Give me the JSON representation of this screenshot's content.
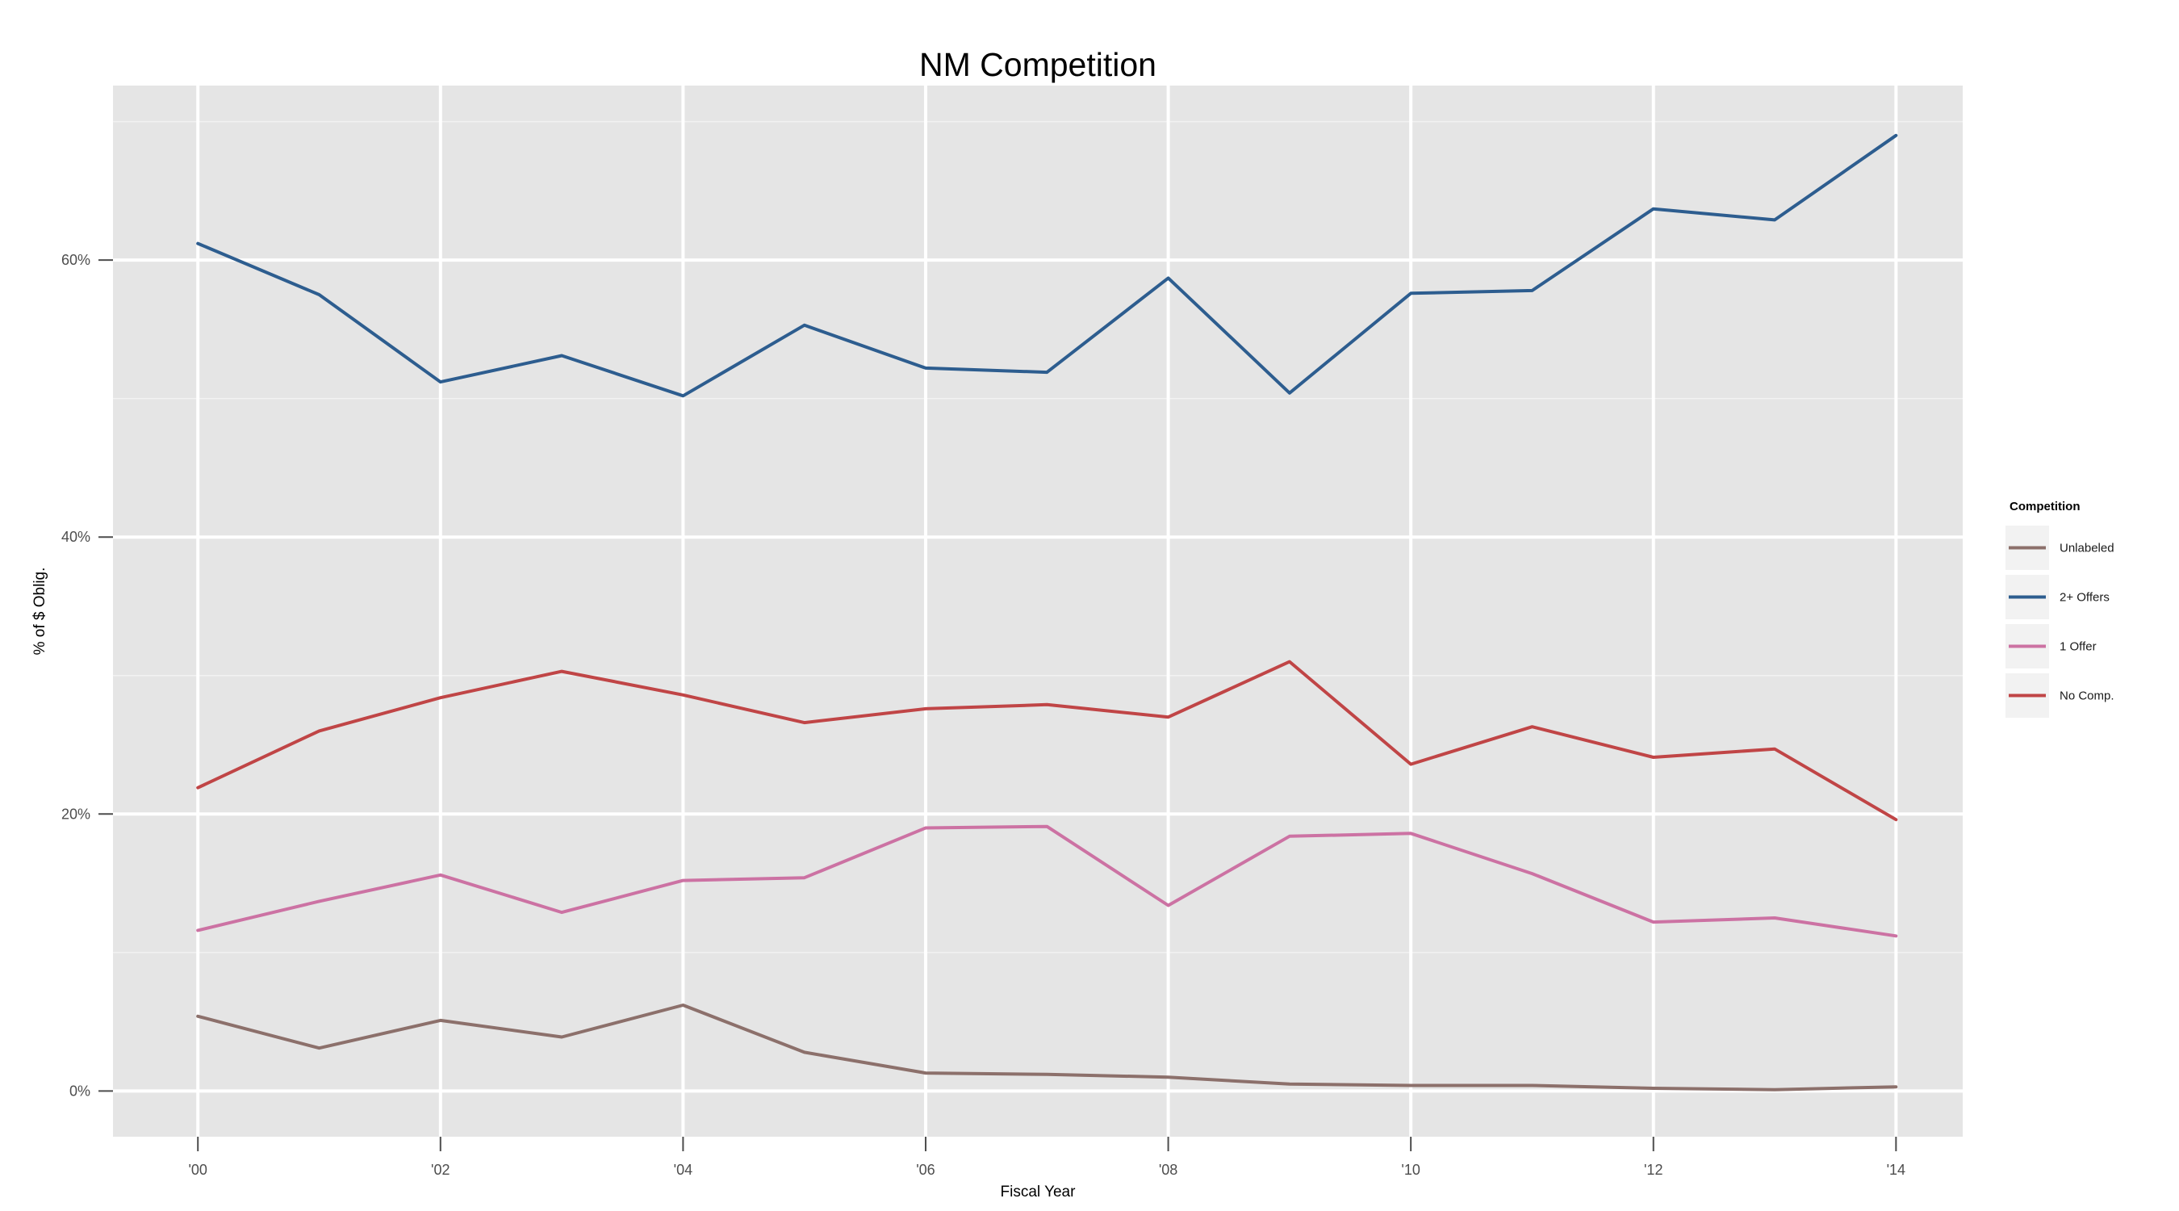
{
  "chart_data": {
    "type": "line",
    "title": "NM Competition",
    "xlabel": "Fiscal Year",
    "ylabel": "% of $ Oblig.",
    "x": [
      2000,
      2001,
      2002,
      2003,
      2004,
      2005,
      2006,
      2007,
      2008,
      2009,
      2010,
      2011,
      2012,
      2013,
      2014
    ],
    "x_ticks": [
      2000,
      2002,
      2004,
      2006,
      2008,
      2010,
      2012,
      2014
    ],
    "x_tick_labels": [
      "'00",
      "'02",
      "'04",
      "'06",
      "'08",
      "'10",
      "'12",
      "'14"
    ],
    "xlim": [
      1999.3,
      2014.55
    ],
    "y_ticks": [
      0,
      20,
      40,
      60
    ],
    "y_tick_labels": [
      "0%",
      "20%",
      "40%",
      "60%"
    ],
    "ylim": [
      -3.3,
      72.6
    ],
    "grid": true,
    "legend": {
      "title": "Competition",
      "position": "right"
    },
    "series": [
      {
        "name": "Unlabeled",
        "color": "#8c706b",
        "values": [
          5.4,
          3.1,
          5.1,
          3.9,
          6.2,
          2.8,
          1.3,
          1.2,
          1.0,
          0.5,
          0.4,
          0.4,
          0.2,
          0.1,
          0.3
        ]
      },
      {
        "name": "2+ Offers",
        "color": "#2d5d8f",
        "values": [
          61.2,
          57.5,
          51.2,
          53.1,
          50.2,
          55.3,
          52.2,
          51.9,
          58.7,
          50.4,
          57.6,
          57.8,
          63.7,
          62.9,
          69.0
        ]
      },
      {
        "name": "1 Offer",
        "color": "#cc72a3",
        "values": [
          11.6,
          13.7,
          15.6,
          12.9,
          15.2,
          15.4,
          19.0,
          19.1,
          13.4,
          18.4,
          18.6,
          15.7,
          12.2,
          12.5,
          11.2
        ]
      },
      {
        "name": "No Comp.",
        "color": "#c04546",
        "values": [
          21.9,
          26.0,
          28.4,
          30.3,
          28.6,
          26.6,
          27.6,
          27.9,
          27.0,
          31.0,
          23.6,
          26.3,
          24.1,
          24.7,
          19.6
        ]
      }
    ]
  }
}
